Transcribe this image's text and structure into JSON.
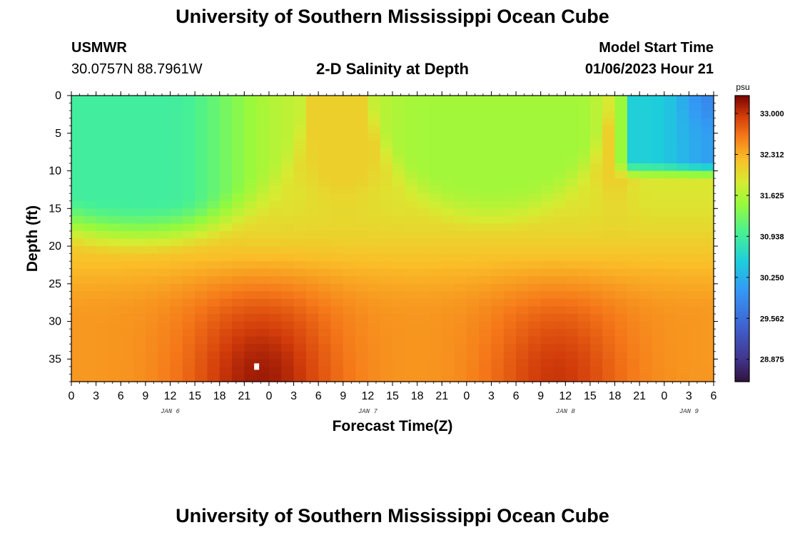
{
  "page": {
    "title": "University of Southern Mississippi Ocean Cube",
    "station": "USMWR",
    "coordinates": "30.0757N  88.7961W",
    "subtitle": "2-D Salinity at Depth",
    "model_start_label": "Model Start Time",
    "model_start_value": "01/06/2023 Hour 21",
    "footer_title": "University of Southern Mississippi Ocean Cube"
  },
  "chart_data": {
    "type": "heatmap",
    "title": "2-D Salinity at Depth",
    "xlabel": "Forecast Time(Z)",
    "ylabel": "Depth (ft)",
    "x_range_hours": [
      0,
      78
    ],
    "x_ticks": [
      "0",
      "3",
      "6",
      "9",
      "12",
      "15",
      "18",
      "21",
      "0",
      "3",
      "6",
      "9",
      "12",
      "15",
      "18",
      "21",
      "0",
      "3",
      "6",
      "9",
      "12",
      "15",
      "18",
      "21",
      "0",
      "3",
      "6"
    ],
    "x_tick_hours": [
      0,
      3,
      6,
      9,
      12,
      15,
      18,
      21,
      24,
      27,
      30,
      33,
      36,
      39,
      42,
      45,
      48,
      51,
      54,
      57,
      60,
      63,
      66,
      69,
      72,
      75,
      78
    ],
    "day_labels": [
      {
        "text": "JAN 6",
        "hour": 12
      },
      {
        "text": "JAN 7",
        "hour": 36
      },
      {
        "text": "JAN 8",
        "hour": 60
      },
      {
        "text": "JAN 9",
        "hour": 75
      }
    ],
    "y_range_ft": [
      0,
      38
    ],
    "y_ticks": [
      0,
      5,
      10,
      15,
      20,
      25,
      30,
      35
    ],
    "colorbar": {
      "unit": "psu",
      "min": 28.5,
      "max": 33.3,
      "tick_values": [
        33.0,
        32.312,
        31.625,
        30.938,
        30.25,
        29.562,
        28.875
      ],
      "tick_labels": [
        "33.000",
        "32.312",
        "31.625",
        "30.938",
        "30.250",
        "29.562",
        "28.875"
      ]
    },
    "grid": {
      "time_step_hours": 1.5,
      "depth_step_ft": 1,
      "fresh_lens_surface_psu": 30.9,
      "deep_base_psu": 32.6
    },
    "features": [
      {
        "name": "fresh-lens-1",
        "hour_start": 0,
        "hour_end": 27,
        "center_hour": 8,
        "max_depth_ft": 21,
        "core_psu": 30.9
      },
      {
        "name": "mid-surface",
        "hour_start": 37,
        "hour_end": 66,
        "center_hour": 52,
        "max_depth_ft": 17,
        "core_psu": 31.55
      },
      {
        "name": "fresh-lens-2",
        "hour_start": 66.5,
        "hour_end": 78,
        "max_depth_ft": 11,
        "core_psu": 30.3
      },
      {
        "name": "saline-core-1",
        "center_hour": 23,
        "depth_ft": 36,
        "core_psu": 33.1
      },
      {
        "name": "saline-core-2",
        "center_hour": 59,
        "depth_ft": 36,
        "core_psu": 32.95
      }
    ],
    "marker": {
      "hour": 22.5,
      "depth_ft": 36
    }
  }
}
